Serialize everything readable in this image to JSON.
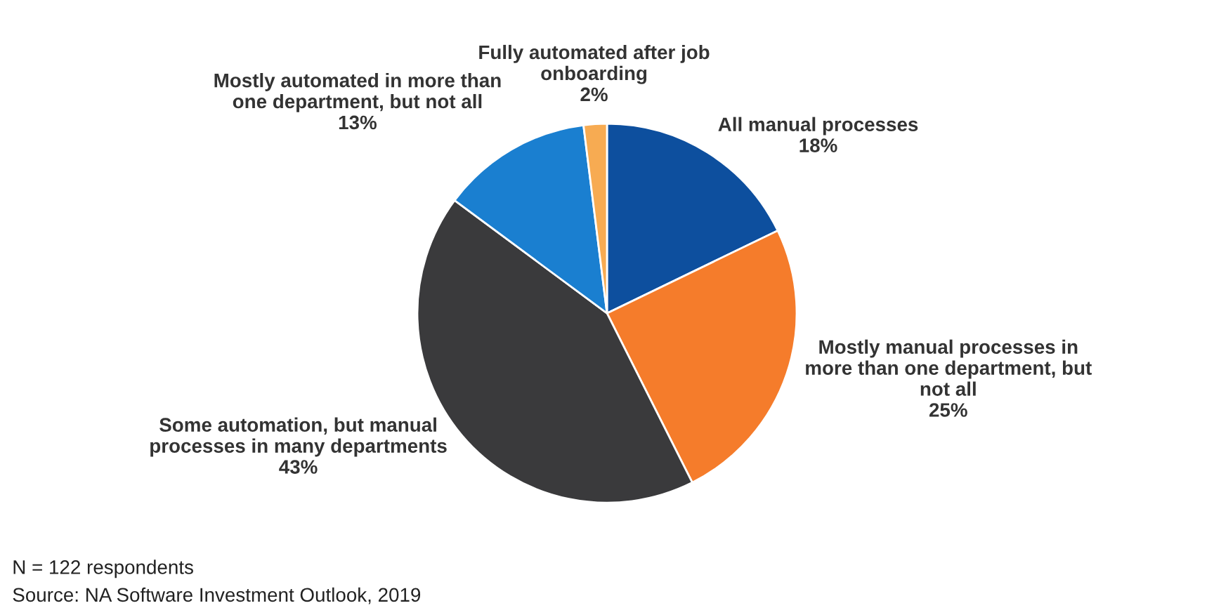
{
  "chart_data": {
    "type": "pie",
    "categories": [
      "All manual processes",
      "Mostly manual processes in more than one department, but not all",
      "Some automation, but manual processes in many departments",
      "Mostly automated in more than one department, but not all",
      "Fully automated after job onboarding"
    ],
    "values": [
      18,
      25,
      43,
      13,
      2
    ],
    "value_labels": [
      "18%",
      "25%",
      "43%",
      "13%",
      "2%"
    ],
    "colors": [
      "#0d4f9e",
      "#f57c2b",
      "#3a3a3c",
      "#1a7fd0",
      "#f7ab52"
    ],
    "annotations": [
      "N = 122 respondents",
      "Source: NA Software Investment Outlook, 2019"
    ],
    "legend": false
  }
}
